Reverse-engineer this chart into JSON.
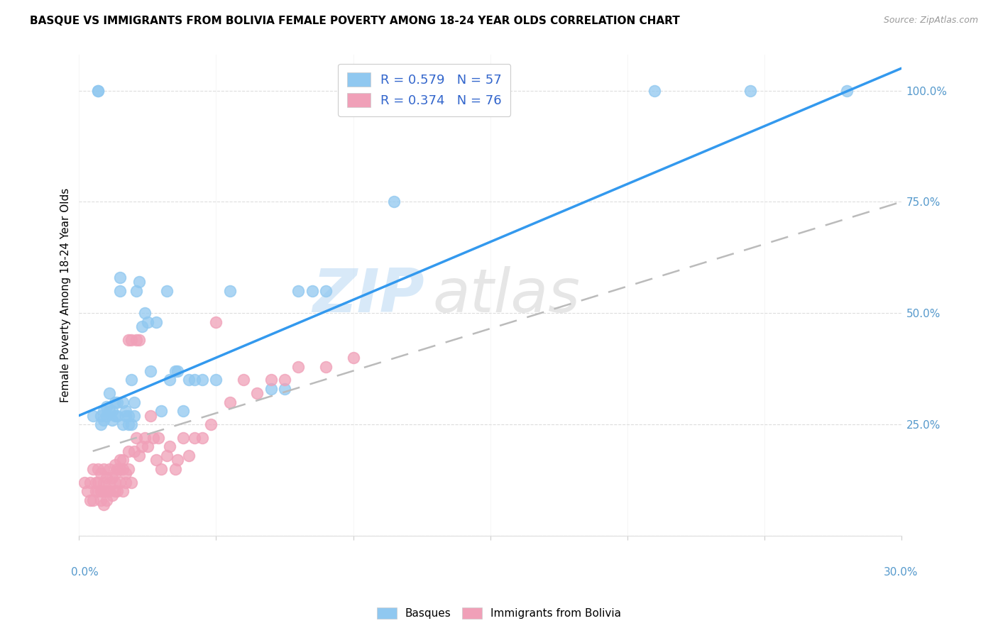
{
  "title": "BASQUE VS IMMIGRANTS FROM BOLIVIA FEMALE POVERTY AMONG 18-24 YEAR OLDS CORRELATION CHART",
  "source": "Source: ZipAtlas.com",
  "ylabel": "Female Poverty Among 18-24 Year Olds",
  "xlim": [
    0.0,
    0.3
  ],
  "ylim": [
    0.0,
    1.08
  ],
  "color_basque": "#90c8f0",
  "color_bolivia": "#f0a0b8",
  "watermark_zip": "ZIP",
  "watermark_atlas": "atlas",
  "basque_scatter_x": [
    0.005,
    0.007,
    0.007,
    0.008,
    0.008,
    0.009,
    0.009,
    0.01,
    0.01,
    0.011,
    0.011,
    0.012,
    0.012,
    0.013,
    0.013,
    0.014,
    0.014,
    0.015,
    0.015,
    0.016,
    0.016,
    0.017,
    0.017,
    0.018,
    0.018,
    0.019,
    0.019,
    0.02,
    0.02,
    0.021,
    0.022,
    0.023,
    0.024,
    0.025,
    0.026,
    0.028,
    0.03,
    0.032,
    0.033,
    0.035,
    0.036,
    0.038,
    0.04,
    0.042,
    0.045,
    0.05,
    0.055,
    0.07,
    0.075,
    0.08,
    0.085,
    0.09,
    0.1,
    0.115,
    0.21,
    0.245,
    0.28
  ],
  "basque_scatter_y": [
    0.27,
    1.0,
    1.0,
    0.25,
    0.27,
    0.26,
    0.28,
    0.27,
    0.29,
    0.28,
    0.32,
    0.26,
    0.28,
    0.27,
    0.3,
    0.27,
    0.3,
    0.55,
    0.58,
    0.25,
    0.3,
    0.27,
    0.28,
    0.25,
    0.27,
    0.25,
    0.35,
    0.27,
    0.3,
    0.55,
    0.57,
    0.47,
    0.5,
    0.48,
    0.37,
    0.48,
    0.28,
    0.55,
    0.35,
    0.37,
    0.37,
    0.28,
    0.35,
    0.35,
    0.35,
    0.35,
    0.55,
    0.33,
    0.33,
    0.55,
    0.55,
    0.55,
    1.0,
    0.75,
    1.0,
    1.0,
    1.0
  ],
  "bolivia_scatter_x": [
    0.002,
    0.003,
    0.004,
    0.004,
    0.005,
    0.005,
    0.006,
    0.006,
    0.007,
    0.007,
    0.007,
    0.008,
    0.008,
    0.008,
    0.009,
    0.009,
    0.009,
    0.009,
    0.01,
    0.01,
    0.01,
    0.011,
    0.011,
    0.011,
    0.012,
    0.012,
    0.013,
    0.013,
    0.013,
    0.013,
    0.014,
    0.014,
    0.015,
    0.015,
    0.015,
    0.016,
    0.016,
    0.016,
    0.017,
    0.017,
    0.018,
    0.018,
    0.018,
    0.019,
    0.019,
    0.02,
    0.021,
    0.021,
    0.022,
    0.022,
    0.023,
    0.024,
    0.025,
    0.026,
    0.027,
    0.028,
    0.029,
    0.03,
    0.032,
    0.033,
    0.035,
    0.036,
    0.038,
    0.04,
    0.042,
    0.045,
    0.048,
    0.05,
    0.055,
    0.06,
    0.065,
    0.07,
    0.075,
    0.08,
    0.09,
    0.1
  ],
  "bolivia_scatter_y": [
    0.12,
    0.1,
    0.08,
    0.12,
    0.08,
    0.15,
    0.1,
    0.12,
    0.1,
    0.12,
    0.15,
    0.08,
    0.1,
    0.14,
    0.07,
    0.1,
    0.12,
    0.15,
    0.08,
    0.1,
    0.13,
    0.1,
    0.12,
    0.15,
    0.09,
    0.13,
    0.1,
    0.12,
    0.14,
    0.16,
    0.1,
    0.15,
    0.12,
    0.15,
    0.17,
    0.1,
    0.15,
    0.17,
    0.12,
    0.14,
    0.15,
    0.19,
    0.44,
    0.12,
    0.44,
    0.19,
    0.22,
    0.44,
    0.18,
    0.44,
    0.2,
    0.22,
    0.2,
    0.27,
    0.22,
    0.17,
    0.22,
    0.15,
    0.18,
    0.2,
    0.15,
    0.17,
    0.22,
    0.18,
    0.22,
    0.22,
    0.25,
    0.48,
    0.3,
    0.35,
    0.32,
    0.35,
    0.35,
    0.38,
    0.38,
    0.4
  ],
  "basque_line_x": [
    0.0,
    0.3
  ],
  "basque_line_y": [
    0.27,
    1.05
  ],
  "bolivia_line_x": [
    0.005,
    0.3
  ],
  "bolivia_line_y": [
    0.19,
    0.75
  ]
}
